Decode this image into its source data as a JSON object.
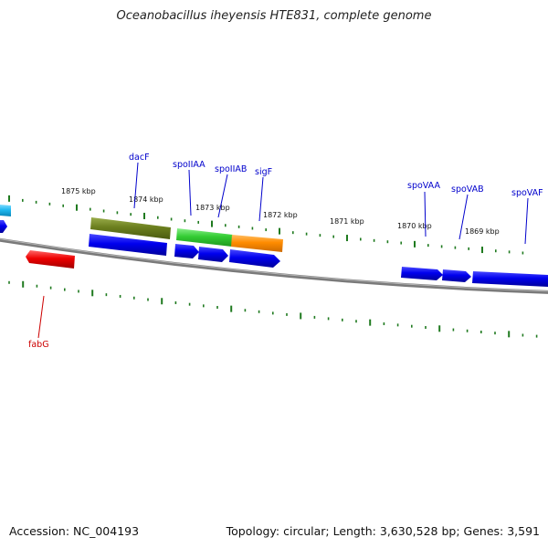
{
  "title": "Oceanobacillus iheyensis HTE831, complete genome",
  "footer": {
    "accession": "Accession: NC_004193",
    "summary": "Topology: circular; Length: 3,630,528 bp; Genes: 3,591"
  },
  "ruler": {
    "labels": [
      "1875 kbp",
      "1874 kbp",
      "1873 kbp",
      "1872 kbp",
      "1871 kbp",
      "1870 kbp",
      "1869 kbp"
    ]
  },
  "gene_labels": [
    {
      "text": "dacF",
      "color": "#0000cc"
    },
    {
      "text": "spoIIAA",
      "color": "#0000cc"
    },
    {
      "text": "spoIIAB",
      "color": "#0000cc"
    },
    {
      "text": "sigF",
      "color": "#0000cc"
    },
    {
      "text": "spoVAA",
      "color": "#0000cc"
    },
    {
      "text": "spoVAB",
      "color": "#0000cc"
    },
    {
      "text": "spoVAF",
      "color": "#0000cc"
    },
    {
      "text": "fabG",
      "color": "#cc0000"
    }
  ],
  "colors": {
    "backbone": "#7a7a7a",
    "ticks": "#1f7a1f",
    "gene_cds": "#0000ee",
    "gene_dacF": "#6b7f1e",
    "gene_spoIIAA": "#33cc33",
    "gene_sigF": "#ff8c00",
    "gene_fabG": "#ee0000",
    "gene_partial_left": "#1fb8f0"
  }
}
